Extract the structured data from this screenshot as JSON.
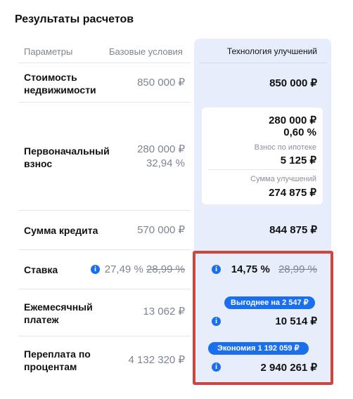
{
  "title": "Результаты расчетов",
  "headers": {
    "params": "Параметры",
    "base": "Базовые условия",
    "tech": "Технология улучшений"
  },
  "rows": {
    "property_cost": {
      "label_line1": "Стоимость",
      "label_line2": "недвижимости",
      "base": "850 000 ₽",
      "tech": "850 000 ₽"
    },
    "down_payment": {
      "label_line1": "Первоначальный",
      "label_line2": "взнос",
      "base_amount": "280 000 ₽",
      "base_percent": "32,94 %",
      "tech_amount": "280 000 ₽",
      "tech_percent": "0,60 %",
      "mortgage_fee_label": "Взнос по ипотеке",
      "mortgage_fee_value": "5 125 ₽",
      "improvements_label": "Сумма улучшений",
      "improvements_value": "274 875 ₽"
    },
    "loan_amount": {
      "label": "Сумма кредита",
      "base": "570 000 ₽",
      "tech": "844 875 ₽"
    },
    "rate": {
      "label": "Ставка",
      "base": "27,49 %",
      "base_old": "28,99 %",
      "tech": "14,75 %",
      "tech_old": "28,99 %"
    },
    "monthly": {
      "label_line1": "Ежемесячный",
      "label_line2": "платеж",
      "base": "13 062 ₽",
      "badge": "Выгоднее на 2 547 ₽",
      "tech": "10 514 ₽"
    },
    "overpay": {
      "label_line1": "Переплата по",
      "label_line2": "процентам",
      "base": "4 132 320 ₽",
      "badge": "Экономия 1 192 059 ₽",
      "tech": "2 940 261 ₽"
    }
  },
  "icons": {
    "info": "info-icon"
  },
  "colors": {
    "accent": "#1a6fee",
    "highlight_border": "#c9473f",
    "tech_column_bg": "#e7edfa"
  }
}
